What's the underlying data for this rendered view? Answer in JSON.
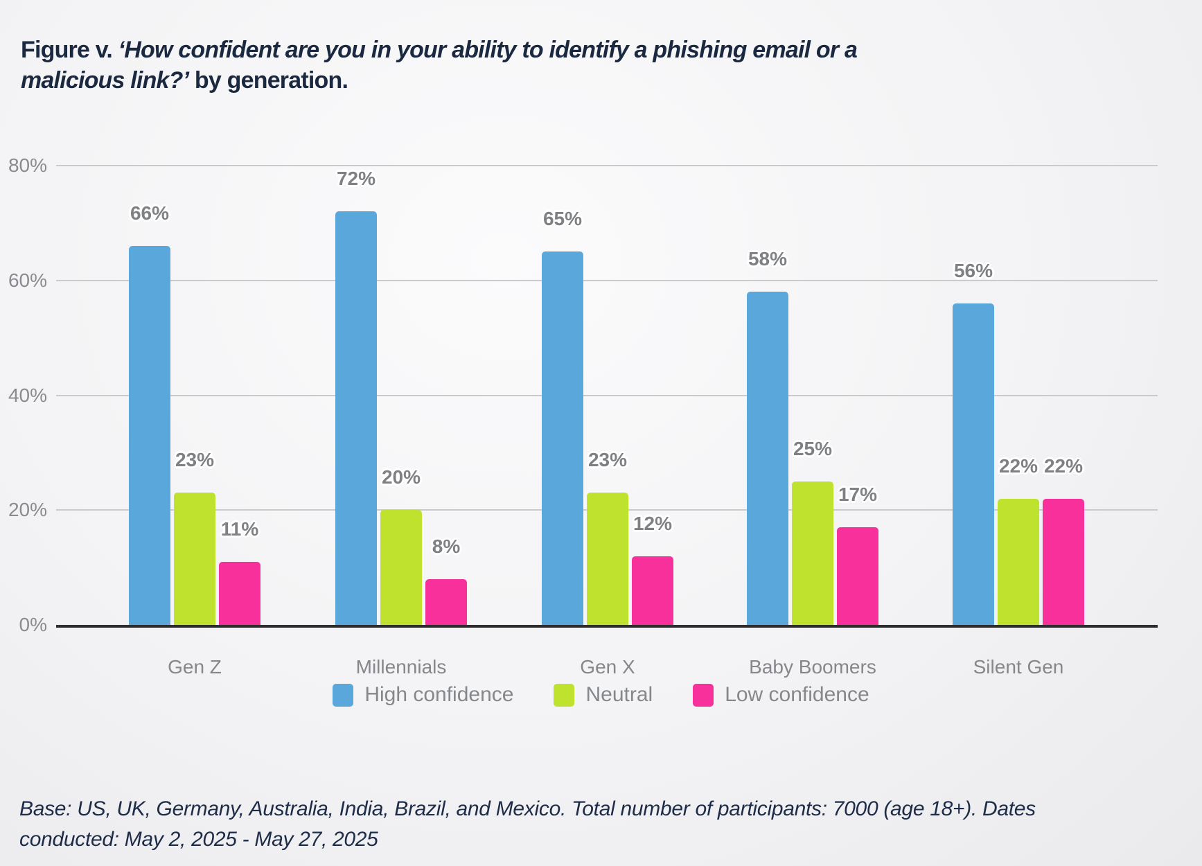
{
  "title": {
    "line1_plain": "Figure v. ",
    "line1_italic": "‘How confident are you in your ability to identify a phishing email or a",
    "line2_italic": "malicious link?’",
    "line2_plain": " by generation."
  },
  "chart_data": {
    "type": "bar",
    "title": "Figure v. ‘How confident are you in your ability to identify a phishing email or a malicious link?’ by generation.",
    "categories": [
      "Gen Z",
      "Millennials",
      "Gen X",
      "Baby Boomers",
      "Silent Gen"
    ],
    "series": [
      {
        "name": "High confidence",
        "color": "#5aa7db",
        "values": [
          66,
          72,
          65,
          58,
          56
        ]
      },
      {
        "name": "Neutral",
        "color": "#bfe22f",
        "values": [
          23,
          20,
          23,
          25,
          22
        ]
      },
      {
        "name": "Low confidence",
        "color": "#f8309b",
        "values": [
          11,
          8,
          12,
          17,
          22
        ]
      }
    ],
    "value_label_suffix": "%",
    "xlabel": "",
    "ylabel": "",
    "ylim": [
      0,
      80
    ],
    "y_ticks": [
      0,
      20,
      40,
      60,
      80
    ],
    "y_tick_labels": [
      "0%",
      "20%",
      "40%",
      "60%",
      "80%"
    ],
    "grid": true,
    "legend_position": "bottom",
    "grid_color": "#c9cacb",
    "axis_color": "#2d2d2e",
    "tick_label_color": "#8a8b8e",
    "value_label_color": "#7e8084"
  },
  "footer": {
    "line1": "Base: US, UK, Germany, Australia, India, Brazil, and Mexico. Total number of participants: 7000 (age 18+). Dates",
    "line2": "conducted: May 2, 2025 - May 27, 2025"
  }
}
